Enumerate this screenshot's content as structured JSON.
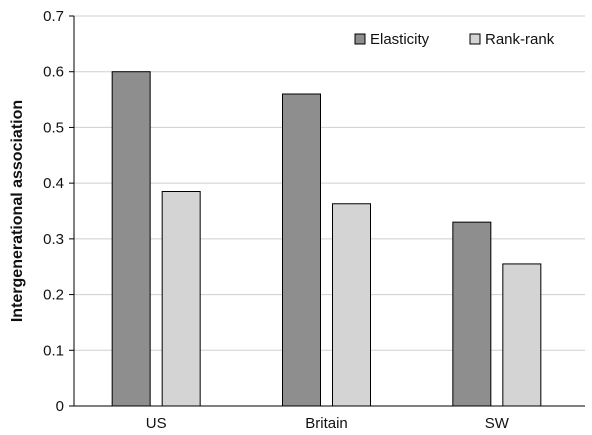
{
  "chart_data": {
    "type": "bar",
    "categories": [
      "US",
      "Britain",
      "SW"
    ],
    "series": [
      {
        "name": "Elasticity",
        "values": [
          0.6,
          0.56,
          0.33
        ],
        "color": "#8e8e8e"
      },
      {
        "name": "Rank-rank",
        "values": [
          0.385,
          0.363,
          0.255
        ],
        "color": "#d4d4d4"
      }
    ],
    "title": "",
    "xlabel": "",
    "ylabel": "Intergenerational association",
    "ylim": [
      0,
      0.7
    ],
    "yticks": [
      "0",
      "0.1",
      "0.2",
      "0.3",
      "0.4",
      "0.5",
      "0.6",
      "0.7"
    ],
    "grid": true,
    "legend_position": "top-right"
  }
}
